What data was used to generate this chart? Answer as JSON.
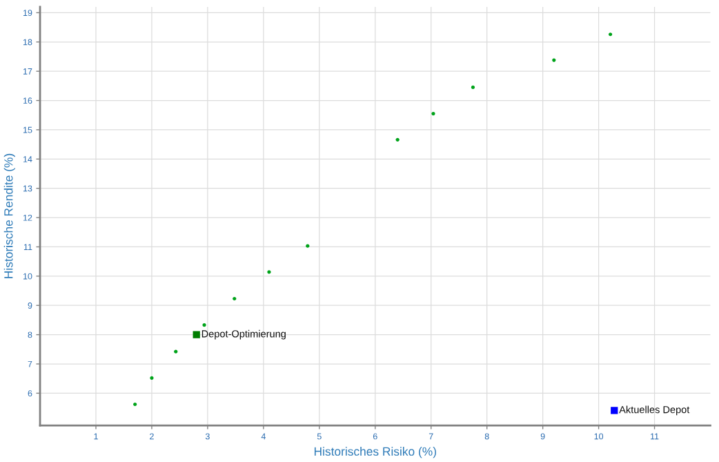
{
  "chart_data": {
    "type": "scatter",
    "xlabel": "Historisches Risiko (%)",
    "ylabel": "Historische Rendite (%)",
    "xlim": [
      0,
      12
    ],
    "ylim": [
      4.9,
      19.2
    ],
    "xticks": [
      1,
      2,
      3,
      4,
      5,
      6,
      7,
      8,
      9,
      10,
      11
    ],
    "yticks": [
      6,
      7,
      8,
      9,
      10,
      11,
      12,
      13,
      14,
      15,
      16,
      17,
      18,
      19
    ],
    "grid": true,
    "legend": false,
    "series": [
      {
        "color": "#00a31a",
        "marker": "circle",
        "x": [
          1.7,
          2.0,
          2.43,
          2.94,
          3.48,
          4.1,
          4.79,
          6.4,
          7.04,
          7.75,
          9.2,
          10.21
        ],
        "values": [
          5.62,
          6.52,
          7.42,
          8.33,
          9.23,
          10.14,
          11.03,
          14.66,
          15.55,
          16.45,
          17.38,
          18.26
        ]
      },
      {
        "name": "Depot-Optimierung",
        "color": "#007d00",
        "marker": "square",
        "x": [
          2.8
        ],
        "values": [
          8.0
        ]
      },
      {
        "name": "Aktuelles Depot",
        "color": "#0000ff",
        "marker": "square",
        "x": [
          10.28
        ],
        "values": [
          5.41
        ]
      }
    ]
  }
}
